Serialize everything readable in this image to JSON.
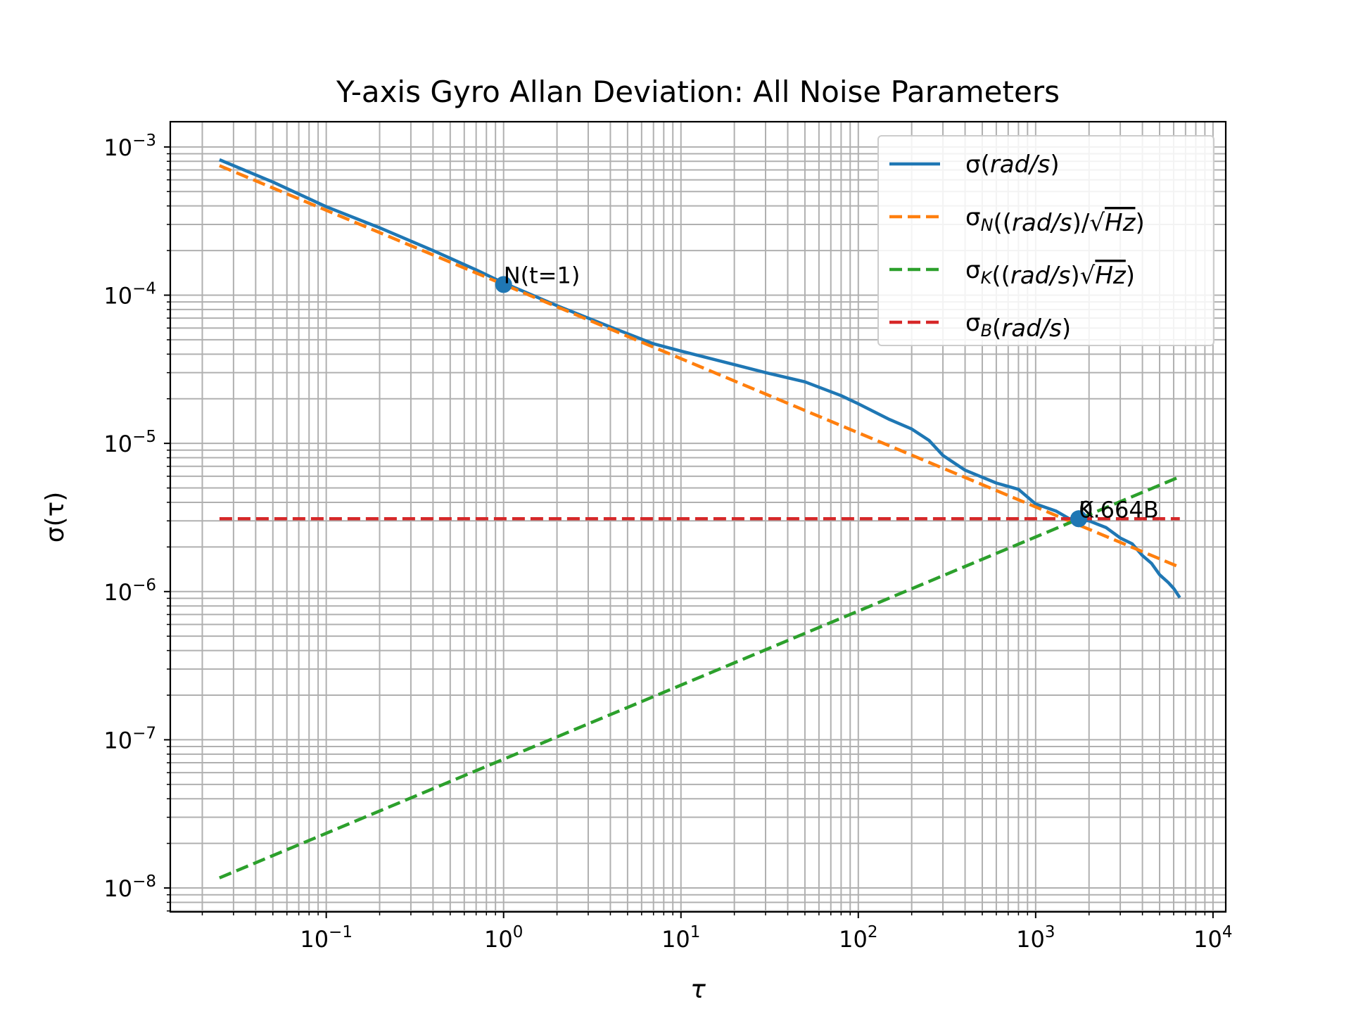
{
  "chart_data": {
    "type": "line",
    "title": "Y-axis Gyro Allan Deviation: All Noise Parameters",
    "xlabel": "τ",
    "ylabel": "σ(τ)",
    "x_scale": "log",
    "y_scale": "log",
    "xlim": [
      0.0132,
      11800
    ],
    "ylim": [
      6.9e-09,
      0.00148
    ],
    "grid": true,
    "grid_minor": true,
    "legend_position": "top-right",
    "x_ticks": [
      {
        "value": 0.1,
        "base": "10",
        "exp": "−1"
      },
      {
        "value": 1,
        "base": "10",
        "exp": "0"
      },
      {
        "value": 10,
        "base": "10",
        "exp": "1"
      },
      {
        "value": 100,
        "base": "10",
        "exp": "2"
      },
      {
        "value": 1000,
        "base": "10",
        "exp": "3"
      },
      {
        "value": 10000,
        "base": "10",
        "exp": "4"
      }
    ],
    "y_ticks": [
      {
        "value": 1e-08,
        "base": "10",
        "exp": "−8"
      },
      {
        "value": 1e-07,
        "base": "10",
        "exp": "−7"
      },
      {
        "value": 1e-06,
        "base": "10",
        "exp": "−6"
      },
      {
        "value": 1e-05,
        "base": "10",
        "exp": "−5"
      },
      {
        "value": 0.0001,
        "base": "10",
        "exp": "−4"
      },
      {
        "value": 0.001,
        "base": "10",
        "exp": "−3"
      }
    ],
    "series": [
      {
        "name": "σ(rad/s)",
        "legend_parts": [
          {
            "t": "σ("
          },
          {
            "t": "rad/s",
            "i": true
          },
          {
            "t": ")"
          }
        ],
        "color": "#1f77b4",
        "style": "solid",
        "points": [
          [
            0.025,
            0.00082
          ],
          [
            0.05,
            0.00058
          ],
          [
            0.1,
            0.000395
          ],
          [
            0.2,
            0.000285
          ],
          [
            0.4,
            0.0002
          ],
          [
            0.7,
            0.000148
          ],
          [
            1.0,
            0.000121
          ],
          [
            2.0,
            8.5e-05
          ],
          [
            4.0,
            6.1e-05
          ],
          [
            7.0,
            4.7e-05
          ],
          [
            10,
            4.2e-05
          ],
          [
            20,
            3.4e-05
          ],
          [
            30,
            3e-05
          ],
          [
            50,
            2.6e-05
          ],
          [
            80,
            2.1e-05
          ],
          [
            100,
            1.85e-05
          ],
          [
            150,
            1.45e-05
          ],
          [
            200,
            1.25e-05
          ],
          [
            250,
            1.05e-05
          ],
          [
            300,
            8.3e-06
          ],
          [
            400,
            6.6e-06
          ],
          [
            600,
            5.4e-06
          ],
          [
            800,
            4.9e-06
          ],
          [
            1000,
            3.9e-06
          ],
          [
            1300,
            3.5e-06
          ],
          [
            1550,
            3.1e-06
          ],
          [
            1750,
            3.05e-06
          ],
          [
            2000,
            3e-06
          ],
          [
            2500,
            2.7e-06
          ],
          [
            3000,
            2.3e-06
          ],
          [
            3500,
            2.1e-06
          ],
          [
            4000,
            1.75e-06
          ],
          [
            4500,
            1.55e-06
          ],
          [
            5000,
            1.3e-06
          ],
          [
            5600,
            1.15e-06
          ],
          [
            6000,
            1.05e-06
          ],
          [
            6500,
            9.1e-07
          ]
        ]
      },
      {
        "name": "σN((rad/s)/√Hz)",
        "legend_parts": [
          {
            "t": "σ"
          },
          {
            "t": "N",
            "i": true,
            "sub": true
          },
          {
            "t": "(("
          },
          {
            "t": "rad/s",
            "i": true
          },
          {
            "t": ")/√"
          },
          {
            "t": "Hz",
            "i": true,
            "over": true
          },
          {
            "t": ")"
          }
        ],
        "color": "#ff7f0e",
        "style": "dashed",
        "points": [
          [
            0.025,
            0.000748
          ],
          [
            6500,
            1.46e-06
          ]
        ]
      },
      {
        "name": "σK((rad/s)√Hz)",
        "legend_parts": [
          {
            "t": "σ"
          },
          {
            "t": "K",
            "i": true,
            "sub": true
          },
          {
            "t": "(("
          },
          {
            "t": "rad/s",
            "i": true
          },
          {
            "t": ")√"
          },
          {
            "t": "Hz",
            "i": true,
            "over": true
          },
          {
            "t": ")"
          }
        ],
        "color": "#2ca02c",
        "style": "dashed",
        "points": [
          [
            0.025,
            1.17e-08
          ],
          [
            6500,
            5.95e-06
          ]
        ]
      },
      {
        "name": "σB(rad/s)",
        "legend_parts": [
          {
            "t": "σ"
          },
          {
            "t": "B",
            "i": true,
            "sub": true
          },
          {
            "t": "("
          },
          {
            "t": "rad/s",
            "i": true
          },
          {
            "t": ")"
          }
        ],
        "color": "#d62728",
        "style": "dashed",
        "points": [
          [
            0.025,
            3.1e-06
          ],
          [
            6500,
            3.1e-06
          ]
        ]
      }
    ],
    "markers": [
      {
        "label": "N(t=1)",
        "x": 1.0,
        "y": 0.000118,
        "color": "#1f77b4"
      },
      {
        "label": "K",
        "x": 1750,
        "y": 3.1e-06,
        "color": "#1f77b4"
      },
      {
        "label": "0.664B",
        "x": 1750,
        "y": 3.1e-06,
        "color": "#1f77b4"
      }
    ]
  }
}
